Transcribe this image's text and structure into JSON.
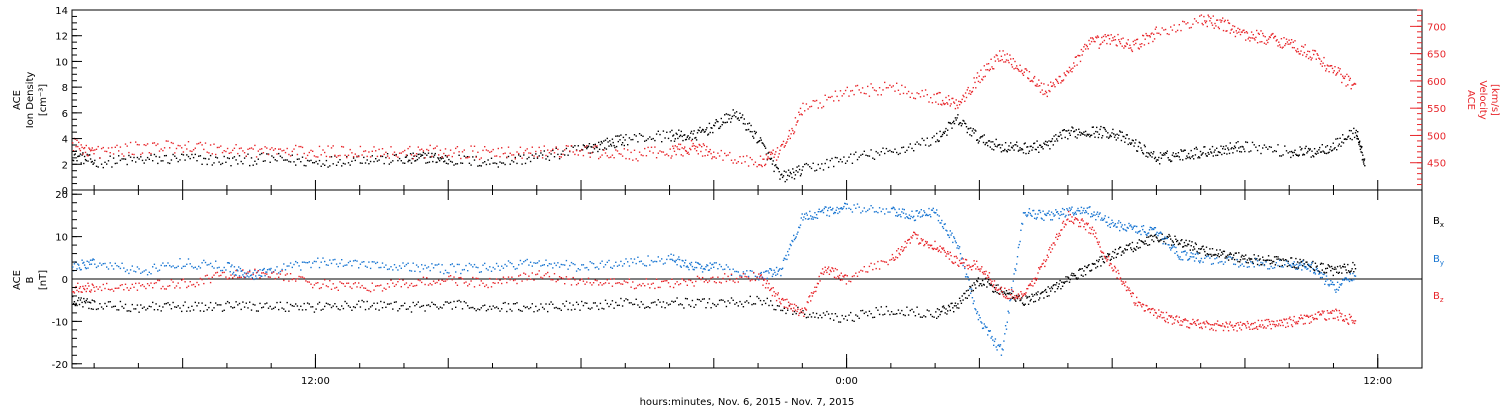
{
  "chart_data": [
    {
      "type": "scatter",
      "panel": "top",
      "ylabel_left": [
        "ACE",
        "Ion Density",
        "[cm⁻³]"
      ],
      "ylabel_right": [
        "ACE",
        "Velocity",
        "[km/s]"
      ],
      "ylim_left": [
        0,
        14
      ],
      "yticks_left": [
        "0",
        "2",
        "4",
        "6",
        "8",
        "10",
        "12",
        "14"
      ],
      "ylim_right": [
        400,
        730
      ],
      "yticks_right": [
        "450",
        "500",
        "550",
        "600",
        "650",
        "700"
      ],
      "series": [
        {
          "color": "#000000",
          "axis": "left",
          "points": [
            [
              2.5,
              2.8
            ],
            [
              3,
              2.2
            ],
            [
              4,
              2.4
            ],
            [
              5,
              2.5
            ],
            [
              6,
              2.3
            ],
            [
              7,
              2.5
            ],
            [
              8,
              2.2
            ],
            [
              9,
              2.5
            ],
            [
              10,
              2.4
            ],
            [
              10.5,
              2.6
            ],
            [
              11,
              2.4
            ],
            [
              12,
              2.2
            ],
            [
              13,
              2.6
            ],
            [
              14,
              3.2
            ],
            [
              14.5,
              3.6
            ],
            [
              15,
              4.0
            ],
            [
              16,
              4.3
            ],
            [
              16.5,
              4.2
            ],
            [
              17,
              5.0
            ],
            [
              17.5,
              6.0
            ],
            [
              18,
              4.0
            ],
            [
              18.5,
              1.0
            ],
            [
              19,
              1.6
            ],
            [
              20,
              2.5
            ],
            [
              21,
              3.0
            ],
            [
              22,
              4.0
            ],
            [
              22.5,
              5.5
            ],
            [
              23,
              4.0
            ],
            [
              23.5,
              3.4
            ],
            [
              24,
              3.3
            ],
            [
              24.5,
              3.5
            ],
            [
              25,
              4.5
            ],
            [
              25.5,
              4.6
            ],
            [
              26,
              4.5
            ],
            [
              26.5,
              3.6
            ],
            [
              27,
              2.5
            ],
            [
              27.5,
              2.8
            ],
            [
              28,
              3.0
            ],
            [
              28.5,
              3.2
            ],
            [
              29,
              3.5
            ],
            [
              30,
              3.0
            ],
            [
              30.5,
              3.0
            ],
            [
              31,
              3.5
            ],
            [
              31.5,
              4.6
            ],
            [
              31.7,
              2.0
            ]
          ]
        },
        {
          "color": "#e8262b",
          "axis": "right",
          "points": [
            [
              2.5,
              485
            ],
            [
              3,
              470
            ],
            [
              4,
              478
            ],
            [
              5,
              482
            ],
            [
              6,
              475
            ],
            [
              7,
              473
            ],
            [
              8,
              470
            ],
            [
              9,
              472
            ],
            [
              10,
              470
            ],
            [
              11,
              472
            ],
            [
              12,
              468
            ],
            [
              13,
              470
            ],
            [
              14,
              473
            ],
            [
              15,
              465
            ],
            [
              16,
              470
            ],
            [
              16.5,
              480
            ],
            [
              17,
              468
            ],
            [
              18,
              450
            ],
            [
              18.5,
              470
            ],
            [
              19,
              550
            ],
            [
              20,
              580
            ],
            [
              21,
              590
            ],
            [
              22,
              570
            ],
            [
              22.5,
              560
            ],
            [
              23,
              610
            ],
            [
              23.5,
              650
            ],
            [
              24,
              620
            ],
            [
              24.5,
              580
            ],
            [
              25,
              620
            ],
            [
              25.5,
              670
            ],
            [
              26,
              678
            ],
            [
              26.5,
              665
            ],
            [
              27,
              690
            ],
            [
              28,
              712
            ],
            [
              28.5,
              705
            ],
            [
              29,
              685
            ],
            [
              29.5,
              680
            ],
            [
              30,
              670
            ],
            [
              30.5,
              650
            ],
            [
              31,
              620
            ],
            [
              31.5,
              590
            ]
          ]
        }
      ]
    },
    {
      "type": "scatter",
      "panel": "bottom",
      "ylabel_left": [
        "ACE",
        "B",
        "[nT]"
      ],
      "ylim": [
        -21,
        21
      ],
      "yticks": [
        "-20",
        "-10",
        "0",
        "10",
        "20"
      ],
      "legend": [
        "Bx",
        "By",
        "Bz"
      ],
      "series": [
        {
          "name": "Bx",
          "color": "#000000",
          "points": [
            [
              2.5,
              -5
            ],
            [
              3,
              -6
            ],
            [
              4,
              -6.5
            ],
            [
              5,
              -6.5
            ],
            [
              6,
              -6.2
            ],
            [
              7,
              -6.2
            ],
            [
              8,
              -6.5
            ],
            [
              9,
              -6
            ],
            [
              10,
              -6.5
            ],
            [
              11,
              -6
            ],
            [
              12,
              -6.5
            ],
            [
              13,
              -6.5
            ],
            [
              14,
              -6
            ],
            [
              15,
              -5.5
            ],
            [
              16,
              -5.5
            ],
            [
              17,
              -5.5
            ],
            [
              18,
              -5
            ],
            [
              19,
              -8
            ],
            [
              20,
              -9
            ],
            [
              21,
              -7
            ],
            [
              22,
              -8
            ],
            [
              22.5,
              -6
            ],
            [
              23,
              0
            ],
            [
              23.5,
              -3
            ],
            [
              24,
              -5
            ],
            [
              24.5,
              -3
            ],
            [
              25,
              0
            ],
            [
              25.5,
              3
            ],
            [
              26,
              6
            ],
            [
              26.5,
              8
            ],
            [
              27,
              10
            ],
            [
              27.5,
              9
            ],
            [
              28,
              7
            ],
            [
              28.5,
              6
            ],
            [
              29,
              5
            ],
            [
              29.5,
              4.5
            ],
            [
              30,
              4
            ],
            [
              30.5,
              3.5
            ],
            [
              31,
              2
            ],
            [
              31.5,
              3
            ]
          ]
        },
        {
          "name": "By",
          "color": "#1976d2",
          "points": [
            [
              2.5,
              3
            ],
            [
              3,
              4
            ],
            [
              4,
              2
            ],
            [
              5,
              4
            ],
            [
              6,
              3
            ],
            [
              6.5,
              1
            ],
            [
              7,
              2
            ],
            [
              8,
              4
            ],
            [
              9,
              4
            ],
            [
              10,
              3
            ],
            [
              11,
              2.5
            ],
            [
              12,
              3
            ],
            [
              13,
              4
            ],
            [
              14,
              3
            ],
            [
              15,
              4
            ],
            [
              16,
              5
            ],
            [
              16.5,
              3
            ],
            [
              17,
              3
            ],
            [
              18,
              1
            ],
            [
              18.5,
              2
            ],
            [
              19,
              15
            ],
            [
              19.5,
              16
            ],
            [
              20,
              17
            ],
            [
              21,
              16
            ],
            [
              21.5,
              15
            ],
            [
              22,
              16
            ],
            [
              22.5,
              8
            ],
            [
              23,
              -10
            ],
            [
              23.5,
              -17
            ],
            [
              24,
              16
            ],
            [
              24.5,
              15
            ],
            [
              25,
              16
            ],
            [
              25.5,
              16
            ],
            [
              26,
              13
            ],
            [
              26.5,
              12
            ],
            [
              27,
              11
            ],
            [
              27.5,
              6
            ],
            [
              28,
              5
            ],
            [
              29,
              4
            ],
            [
              30,
              3.5
            ],
            [
              30.5,
              3
            ],
            [
              31,
              -2
            ],
            [
              31.5,
              1
            ]
          ]
        },
        {
          "name": "Bz",
          "color": "#e8262b",
          "points": [
            [
              2.5,
              -2
            ],
            [
              3,
              -2
            ],
            [
              4,
              -1.5
            ],
            [
              5,
              -1
            ],
            [
              6,
              1
            ],
            [
              7,
              1.5
            ],
            [
              8,
              -1
            ],
            [
              9,
              -2
            ],
            [
              10,
              -1
            ],
            [
              11,
              0
            ],
            [
              12,
              -1
            ],
            [
              13,
              1
            ],
            [
              14,
              -0.5
            ],
            [
              15,
              -1
            ],
            [
              16,
              -1
            ],
            [
              17,
              0
            ],
            [
              18,
              1
            ],
            [
              18.5,
              -5
            ],
            [
              19,
              -8
            ],
            [
              19.5,
              3
            ],
            [
              20,
              0
            ],
            [
              21,
              5
            ],
            [
              21.5,
              10
            ],
            [
              22,
              8
            ],
            [
              22.5,
              4
            ],
            [
              23,
              3
            ],
            [
              23.5,
              -3
            ],
            [
              24,
              -4
            ],
            [
              24.5,
              5
            ],
            [
              25,
              15
            ],
            [
              25.5,
              12
            ],
            [
              26,
              3
            ],
            [
              26.5,
              -5
            ],
            [
              27,
              -8
            ],
            [
              27.5,
              -10
            ],
            [
              28,
              -10.5
            ],
            [
              28.5,
              -11
            ],
            [
              29,
              -11
            ],
            [
              29.5,
              -10.5
            ],
            [
              30,
              -10
            ],
            [
              30.5,
              -9
            ],
            [
              31,
              -8
            ],
            [
              31.5,
              -10
            ]
          ]
        }
      ]
    }
  ],
  "x_axis": {
    "xlim": [
      2.5,
      33
    ],
    "tick_labels": [
      {
        "x": 8,
        "label": "12:00"
      },
      {
        "x": 20,
        "label": "0:00"
      },
      {
        "x": 32,
        "label": "12:00"
      }
    ],
    "minor_step_hours": 1,
    "major_step_hours": 3,
    "xlabel": "hours:minutes, Nov. 6, 2015 - Nov. 7, 2015"
  }
}
